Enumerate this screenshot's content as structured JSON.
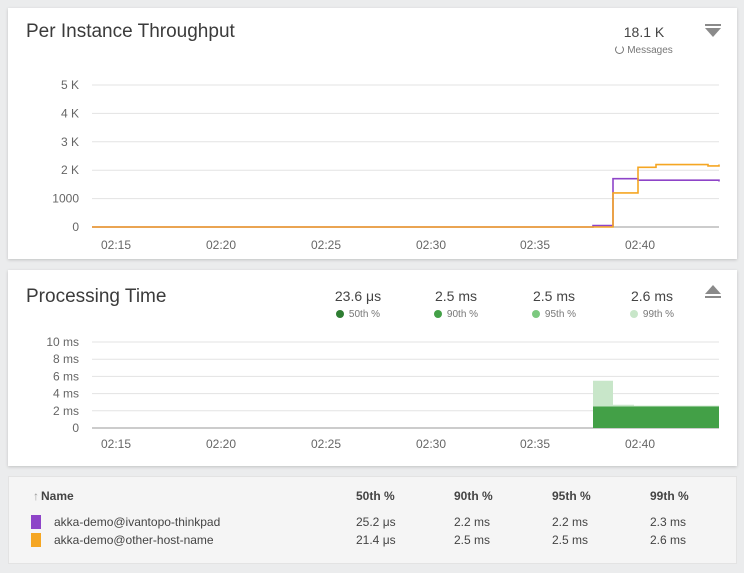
{
  "throughput": {
    "title": "Per Instance Throughput",
    "summary_value": "18.1 K",
    "summary_label": "Messages",
    "y_ticks": [
      "5 K",
      "4 K",
      "3 K",
      "2 K",
      "1000",
      "0"
    ],
    "x_ticks": [
      "02:15",
      "02:20",
      "02:25",
      "02:30",
      "02:35",
      "02:40"
    ],
    "menu_icon": "collapse-down-icon"
  },
  "processing": {
    "title": "Processing Time",
    "y_ticks": [
      "10 ms",
      "8 ms",
      "6 ms",
      "4 ms",
      "2 ms",
      "0"
    ],
    "x_ticks": [
      "02:15",
      "02:20",
      "02:25",
      "02:30",
      "02:35",
      "02:40"
    ],
    "stats": [
      {
        "value": "23.6 μs",
        "label": "50th %",
        "color": "#2e7d32"
      },
      {
        "value": "2.5 ms",
        "label": "90th %",
        "color": "#43a047"
      },
      {
        "value": "2.5 ms",
        "label": "95th %",
        "color": "#7cc97f"
      },
      {
        "value": "2.6 ms",
        "label": "99th %",
        "color": "#c8e6c9"
      }
    ],
    "menu_icon": "collapse-up-icon"
  },
  "table": {
    "headers": {
      "name": "Name",
      "p50": "50th %",
      "p90": "90th %",
      "p95": "95th %",
      "p99": "99th %"
    },
    "rows": [
      {
        "name": "akka-demo@ivantopo-thinkpad",
        "color": "#8e44c8",
        "p50": "25.2 μs",
        "p90": "2.2 ms",
        "p95": "2.2 ms",
        "p99": "2.3 ms"
      },
      {
        "name": "akka-demo@other-host-name",
        "color": "#f5a623",
        "p50": "21.4 μs",
        "p90": "2.5 ms",
        "p95": "2.5 ms",
        "p99": "2.6 ms"
      }
    ]
  },
  "chart_data": [
    {
      "type": "line",
      "title": "Per Instance Throughput",
      "x": [
        "02:39",
        "02:39.5",
        "02:40",
        "02:40.5",
        "02:41",
        "02:41.5",
        "02:42",
        "02:42.5",
        "02:43",
        "02:43.5"
      ],
      "series": [
        {
          "name": "akka-demo@ivantopo-thinkpad",
          "color": "#8e44c8",
          "values": [
            50,
            1700,
            1700,
            1650,
            1650,
            1650,
            1650,
            1650,
            1600,
            1600
          ]
        },
        {
          "name": "akka-demo@other-host-name",
          "color": "#f5a623",
          "values": [
            0,
            1200,
            1200,
            2100,
            2200,
            2200,
            2200,
            2150,
            2200,
            2200
          ]
        }
      ],
      "ylim": [
        0,
        5000
      ],
      "grid": true
    },
    {
      "type": "area",
      "title": "Processing Time",
      "x": [
        "02:39",
        "02:39.5",
        "02:40",
        "02:40.5",
        "02:41",
        "02:41.5",
        "02:42",
        "02:42.5",
        "02:43",
        "02:43.5"
      ],
      "series": [
        {
          "name": "99th %",
          "color": "#c8e6c9",
          "values": [
            5.5,
            2.7,
            2.6,
            2.6,
            2.6,
            2.6,
            2.6,
            2.6,
            2.6,
            2.6
          ]
        },
        {
          "name": "95th %",
          "color": "#7cc97f",
          "values": [
            2.5,
            2.5,
            2.5,
            2.5,
            2.5,
            2.5,
            2.5,
            2.5,
            2.5,
            2.5
          ]
        },
        {
          "name": "90th %",
          "color": "#43a047",
          "values": [
            2.5,
            2.5,
            2.5,
            2.5,
            2.5,
            2.5,
            2.5,
            2.5,
            2.5,
            2.5
          ]
        }
      ],
      "ylim": [
        0,
        10
      ],
      "grid": true
    }
  ]
}
